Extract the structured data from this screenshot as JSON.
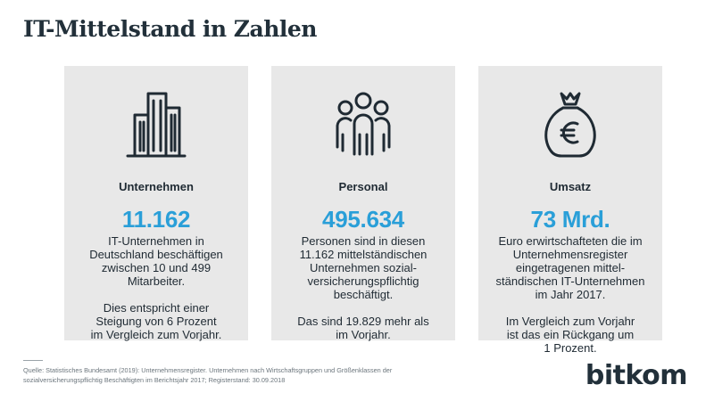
{
  "title": "IT-Mittelstand in Zahlen",
  "cards": [
    {
      "icon": "office-building-icon",
      "label": "Unternehmen",
      "value": "11.162",
      "description": "IT-Unternehmen in Deutschland beschäftigen zwischen 10 und 499 Mitarbeiter.",
      "note": "Dies entspricht einer Steigung von 6 Prozent im Vergleich zum Vorjahr."
    },
    {
      "icon": "people-group-icon",
      "label": "Personal",
      "value": "495.634",
      "description": "Personen sind in diesen 11.162 mittelständischen Unternehmen sozial-versicherungspflichtig beschäftigt.",
      "note": "Das sind 19.829 mehr als im Vorjahr."
    },
    {
      "icon": "euro-money-bag-icon",
      "label": "Umsatz",
      "value": "73 Mrd.",
      "description": "Euro erwirtschafteten die im Unternehmensregister eingetragenen mittel-ständischen IT-Unternehmen im Jahr 2017.",
      "note": "Im Vergleich zum Vorjahr ist das ein Rückgang um 1 Prozent."
    }
  ],
  "source": "Quelle: Statistisches Bundesamt (2019): Unternehmensregister. Unternehmen nach Wirtschaftsgruppen und Größenklassen der sozialversicherungspflichtig Beschäftigten im Berichtsjahr 2017; Registerstand: 30.09.2018",
  "logo": "bitkom",
  "colors": {
    "accent": "#2a9fd8",
    "card_bg": "#e8e8e8",
    "text": "#1f2a33"
  }
}
